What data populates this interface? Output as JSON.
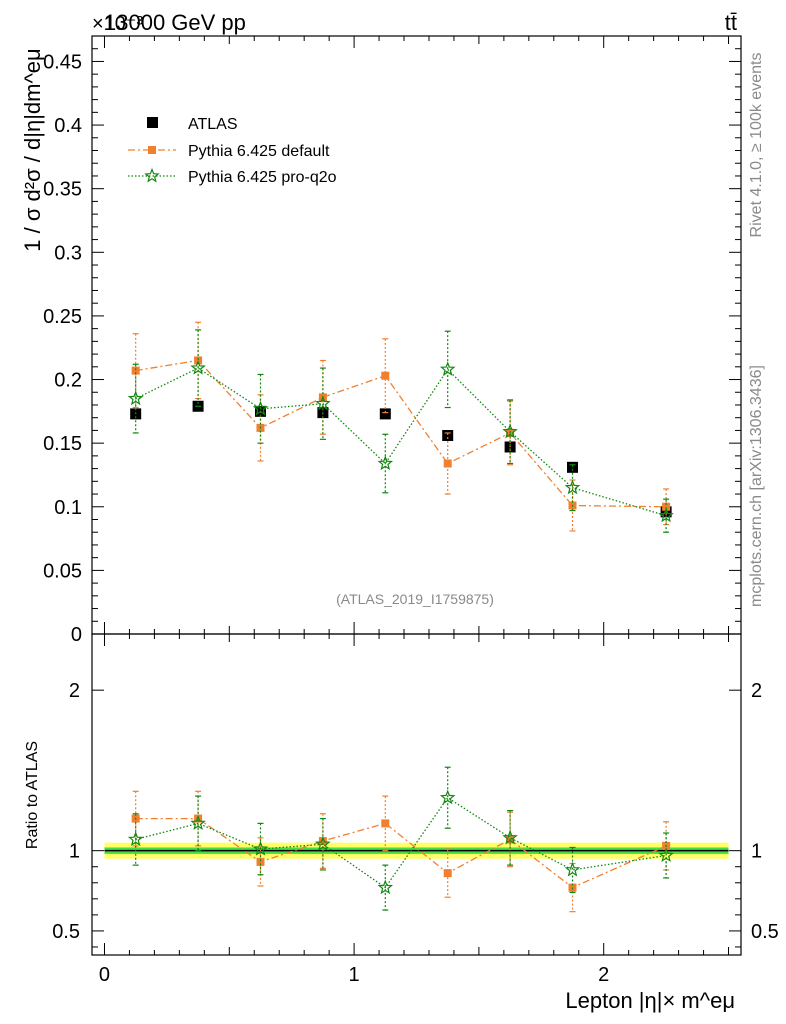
{
  "header": {
    "energy_label": "13000 GeV pp",
    "process_label": "tt̄",
    "exponent_label": "×10⁻³",
    "watermark": "(ATLAS_2019_I1759875)",
    "side_rivet": "Rivet 4.1.0, ≥ 100k events",
    "side_mcplots": "mcplots.cern.ch [arXiv:1306.3436]"
  },
  "colors": {
    "data": "#000000",
    "default": "#f08030",
    "proq2o": "#118811",
    "band_inner": "#44dd44",
    "band_outer": "#ffff66"
  },
  "chart_data": [
    {
      "type": "scatter",
      "title": "13000 GeV pp",
      "xlabel": "Lepton |η|× m^eμ",
      "ylabel": "1 / σ d²σ / d|η|dm^eμ",
      "y_scale_label": "×10⁻³",
      "xlim": [
        -0.05,
        2.55
      ],
      "ylim": [
        0,
        0.47
      ],
      "xticks": [
        0,
        1,
        2
      ],
      "yticks": [
        0,
        0.05,
        0.1,
        0.15,
        0.2,
        0.25,
        0.3,
        0.35,
        0.4,
        0.45
      ],
      "ytick_labels": [
        "0",
        "0.05",
        "0.1",
        "0.15",
        "0.2",
        "0.25",
        "0.3",
        "0.35",
        "0.4",
        "0.45"
      ],
      "x": [
        0.125,
        0.375,
        0.625,
        0.875,
        1.125,
        1.375,
        1.625,
        1.875,
        2.25
      ],
      "legend": [
        "ATLAS",
        "Pythia 6.425 default",
        "Pythia 6.425 pro-q2o"
      ],
      "series": [
        {
          "name": "ATLAS",
          "style": "data",
          "values": [
            0.173,
            0.179,
            0.175,
            0.174,
            0.173,
            0.156,
            0.147,
            0.131,
            0.096
          ],
          "errors": [
            0.003,
            0.003,
            0.003,
            0.003,
            0.003,
            0.003,
            0.003,
            0.003,
            0.003
          ]
        },
        {
          "name": "Pythia 6.425 default",
          "style": "default",
          "values": [
            0.207,
            0.215,
            0.162,
            0.186,
            0.203,
            0.134,
            0.158,
            0.101,
            0.1
          ],
          "errors": [
            0.029,
            0.03,
            0.026,
            0.029,
            0.029,
            0.024,
            0.025,
            0.02,
            0.014
          ]
        },
        {
          "name": "Pythia 6.425 pro-q2o",
          "style": "proq2o",
          "values": [
            0.185,
            0.209,
            0.177,
            0.181,
            0.134,
            0.208,
            0.159,
            0.115,
            0.093
          ],
          "errors": [
            0.027,
            0.03,
            0.027,
            0.028,
            0.023,
            0.03,
            0.025,
            0.018,
            0.013
          ]
        }
      ]
    },
    {
      "type": "scatter",
      "xlabel": "Lepton |η|× m^eμ",
      "ylabel": "Ratio to ATLAS",
      "xlim": [
        -0.05,
        2.55
      ],
      "ylim": [
        0.35,
        2.35
      ],
      "yticks": [
        0.5,
        1,
        2
      ],
      "ytick_labels": [
        "0.5",
        "1",
        "2"
      ],
      "x": [
        0.125,
        0.375,
        0.625,
        0.875,
        1.125,
        1.375,
        1.625,
        1.875,
        2.25
      ],
      "band": {
        "inner": 0.02,
        "outer": 0.05
      },
      "series": [
        {
          "name": "Pythia 6.425 default",
          "style": "default",
          "values": [
            1.2,
            1.2,
            0.93,
            1.06,
            1.17,
            0.86,
            1.07,
            0.77,
            1.03
          ],
          "errors": [
            0.17,
            0.17,
            0.15,
            0.17,
            0.17,
            0.15,
            0.17,
            0.15,
            0.15
          ]
        },
        {
          "name": "Pythia 6.425 pro-q2o",
          "style": "proq2o",
          "values": [
            1.07,
            1.17,
            1.01,
            1.04,
            0.77,
            1.33,
            1.08,
            0.88,
            0.97
          ],
          "errors": [
            0.16,
            0.17,
            0.16,
            0.16,
            0.14,
            0.19,
            0.17,
            0.14,
            0.14
          ]
        }
      ]
    }
  ]
}
